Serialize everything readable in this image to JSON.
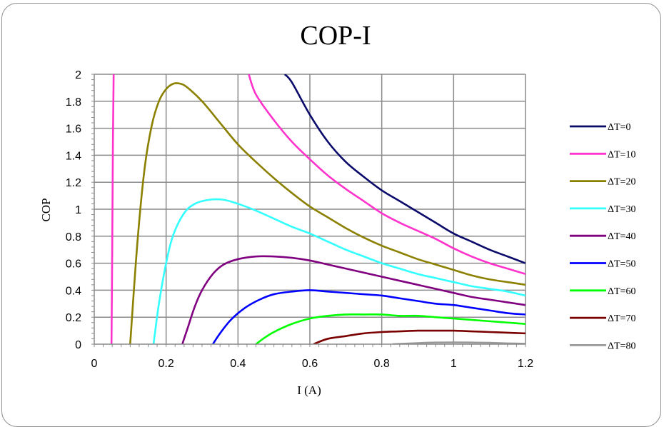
{
  "chart_data": {
    "type": "line",
    "title": "COP-I",
    "xlabel": "I (A)",
    "ylabel": "COP",
    "xlim": [
      0,
      1.2
    ],
    "ylim": [
      0,
      2
    ],
    "x_ticks": [
      "0",
      "0.2",
      "0.4",
      "0.6",
      "0.8",
      "1",
      "1.2"
    ],
    "y_ticks": [
      "0",
      "0.2",
      "0.4",
      "0.6",
      "0.8",
      "1",
      "1.2",
      "1.4",
      "1.6",
      "1.8",
      "2"
    ],
    "grid": true,
    "legend_position": "right",
    "series": [
      {
        "name": "ΔT=0",
        "color": "#0b0b6b",
        "points": [
          [
            0.53,
            2.0
          ],
          [
            0.55,
            1.94
          ],
          [
            0.6,
            1.7
          ],
          [
            0.65,
            1.5
          ],
          [
            0.7,
            1.35
          ],
          [
            0.75,
            1.24
          ],
          [
            0.8,
            1.14
          ],
          [
            0.85,
            1.06
          ],
          [
            0.9,
            0.98
          ],
          [
            0.95,
            0.9
          ],
          [
            1.0,
            0.82
          ],
          [
            1.05,
            0.76
          ],
          [
            1.1,
            0.7
          ],
          [
            1.15,
            0.65
          ],
          [
            1.2,
            0.6
          ]
        ]
      },
      {
        "name": "ΔT=10",
        "color": "#ff33cc",
        "points": [
          [
            0.048,
            0.0
          ],
          [
            0.05,
            0.7
          ],
          [
            0.052,
            1.5
          ],
          [
            0.054,
            2.0
          ]
        ],
        "points2": [
          [
            0.43,
            2.0
          ],
          [
            0.45,
            1.85
          ],
          [
            0.5,
            1.66
          ],
          [
            0.55,
            1.5
          ],
          [
            0.6,
            1.37
          ],
          [
            0.65,
            1.25
          ],
          [
            0.7,
            1.15
          ],
          [
            0.75,
            1.06
          ],
          [
            0.8,
            0.97
          ],
          [
            0.85,
            0.9
          ],
          [
            0.9,
            0.84
          ],
          [
            0.95,
            0.78
          ],
          [
            1.0,
            0.71
          ],
          [
            1.05,
            0.65
          ],
          [
            1.1,
            0.6
          ],
          [
            1.15,
            0.56
          ],
          [
            1.2,
            0.52
          ]
        ]
      },
      {
        "name": "ΔT=20",
        "color": "#8b8000",
        "points": [
          [
            0.1,
            0.0
          ],
          [
            0.12,
            0.75
          ],
          [
            0.14,
            1.3
          ],
          [
            0.16,
            1.62
          ],
          [
            0.18,
            1.8
          ],
          [
            0.2,
            1.89
          ],
          [
            0.22,
            1.93
          ],
          [
            0.24,
            1.93
          ],
          [
            0.26,
            1.9
          ],
          [
            0.3,
            1.8
          ],
          [
            0.35,
            1.64
          ],
          [
            0.4,
            1.48
          ],
          [
            0.45,
            1.35
          ],
          [
            0.5,
            1.23
          ],
          [
            0.55,
            1.12
          ],
          [
            0.6,
            1.02
          ],
          [
            0.65,
            0.94
          ],
          [
            0.7,
            0.86
          ],
          [
            0.75,
            0.79
          ],
          [
            0.8,
            0.73
          ],
          [
            0.85,
            0.68
          ],
          [
            0.9,
            0.63
          ],
          [
            0.95,
            0.59
          ],
          [
            1.0,
            0.55
          ],
          [
            1.05,
            0.51
          ],
          [
            1.1,
            0.48
          ],
          [
            1.15,
            0.46
          ],
          [
            1.2,
            0.44
          ]
        ]
      },
      {
        "name": "ΔT=30",
        "color": "#33ffff",
        "points": [
          [
            0.165,
            0.0
          ],
          [
            0.18,
            0.3
          ],
          [
            0.2,
            0.6
          ],
          [
            0.22,
            0.81
          ],
          [
            0.25,
            0.97
          ],
          [
            0.28,
            1.04
          ],
          [
            0.32,
            1.07
          ],
          [
            0.36,
            1.07
          ],
          [
            0.4,
            1.04
          ],
          [
            0.45,
            0.99
          ],
          [
            0.5,
            0.93
          ],
          [
            0.55,
            0.87
          ],
          [
            0.6,
            0.82
          ],
          [
            0.65,
            0.76
          ],
          [
            0.7,
            0.7
          ],
          [
            0.75,
            0.65
          ],
          [
            0.8,
            0.6
          ],
          [
            0.85,
            0.56
          ],
          [
            0.9,
            0.52
          ],
          [
            0.95,
            0.49
          ],
          [
            1.0,
            0.46
          ],
          [
            1.05,
            0.43
          ],
          [
            1.1,
            0.41
          ],
          [
            1.15,
            0.39
          ],
          [
            1.2,
            0.36
          ]
        ]
      },
      {
        "name": "ΔT=40",
        "color": "#800080",
        "points": [
          [
            0.245,
            0.0
          ],
          [
            0.26,
            0.12
          ],
          [
            0.28,
            0.28
          ],
          [
            0.3,
            0.4
          ],
          [
            0.33,
            0.52
          ],
          [
            0.36,
            0.59
          ],
          [
            0.4,
            0.63
          ],
          [
            0.45,
            0.65
          ],
          [
            0.5,
            0.65
          ],
          [
            0.55,
            0.64
          ],
          [
            0.6,
            0.62
          ],
          [
            0.65,
            0.59
          ],
          [
            0.7,
            0.56
          ],
          [
            0.75,
            0.53
          ],
          [
            0.8,
            0.5
          ],
          [
            0.85,
            0.47
          ],
          [
            0.9,
            0.44
          ],
          [
            0.95,
            0.41
          ],
          [
            1.0,
            0.38
          ],
          [
            1.05,
            0.35
          ],
          [
            1.1,
            0.33
          ],
          [
            1.15,
            0.31
          ],
          [
            1.2,
            0.29
          ]
        ]
      },
      {
        "name": "ΔT=50",
        "color": "#0000ff",
        "points": [
          [
            0.33,
            0.0
          ],
          [
            0.35,
            0.08
          ],
          [
            0.38,
            0.18
          ],
          [
            0.42,
            0.27
          ],
          [
            0.46,
            0.33
          ],
          [
            0.5,
            0.37
          ],
          [
            0.55,
            0.39
          ],
          [
            0.6,
            0.4
          ],
          [
            0.65,
            0.39
          ],
          [
            0.7,
            0.38
          ],
          [
            0.75,
            0.37
          ],
          [
            0.8,
            0.36
          ],
          [
            0.85,
            0.34
          ],
          [
            0.9,
            0.32
          ],
          [
            0.95,
            0.3
          ],
          [
            1.0,
            0.29
          ],
          [
            1.05,
            0.27
          ],
          [
            1.1,
            0.25
          ],
          [
            1.15,
            0.23
          ],
          [
            1.2,
            0.22
          ]
        ]
      },
      {
        "name": "ΔT=60",
        "color": "#00ff00",
        "points": [
          [
            0.45,
            0.0
          ],
          [
            0.47,
            0.04
          ],
          [
            0.5,
            0.09
          ],
          [
            0.55,
            0.15
          ],
          [
            0.6,
            0.19
          ],
          [
            0.65,
            0.21
          ],
          [
            0.7,
            0.22
          ],
          [
            0.75,
            0.22
          ],
          [
            0.8,
            0.22
          ],
          [
            0.85,
            0.21
          ],
          [
            0.9,
            0.21
          ],
          [
            0.95,
            0.2
          ],
          [
            1.0,
            0.19
          ],
          [
            1.05,
            0.18
          ],
          [
            1.1,
            0.17
          ],
          [
            1.15,
            0.16
          ],
          [
            1.2,
            0.15
          ]
        ]
      },
      {
        "name": "ΔT=70",
        "color": "#7a0000",
        "points": [
          [
            0.61,
            0.0
          ],
          [
            0.65,
            0.04
          ],
          [
            0.7,
            0.06
          ],
          [
            0.75,
            0.08
          ],
          [
            0.8,
            0.09
          ],
          [
            0.85,
            0.095
          ],
          [
            0.9,
            0.1
          ],
          [
            0.95,
            0.1
          ],
          [
            1.0,
            0.1
          ],
          [
            1.05,
            0.095
          ],
          [
            1.1,
            0.09
          ],
          [
            1.15,
            0.085
          ],
          [
            1.2,
            0.08
          ]
        ]
      },
      {
        "name": "ΔT=80",
        "color": "#999999",
        "points": [
          [
            0.83,
            0.0
          ],
          [
            0.9,
            0.008
          ],
          [
            0.95,
            0.012
          ],
          [
            1.0,
            0.013
          ],
          [
            1.05,
            0.012
          ],
          [
            1.1,
            0.01
          ],
          [
            1.15,
            0.006
          ],
          [
            1.2,
            0.003
          ]
        ]
      }
    ]
  }
}
